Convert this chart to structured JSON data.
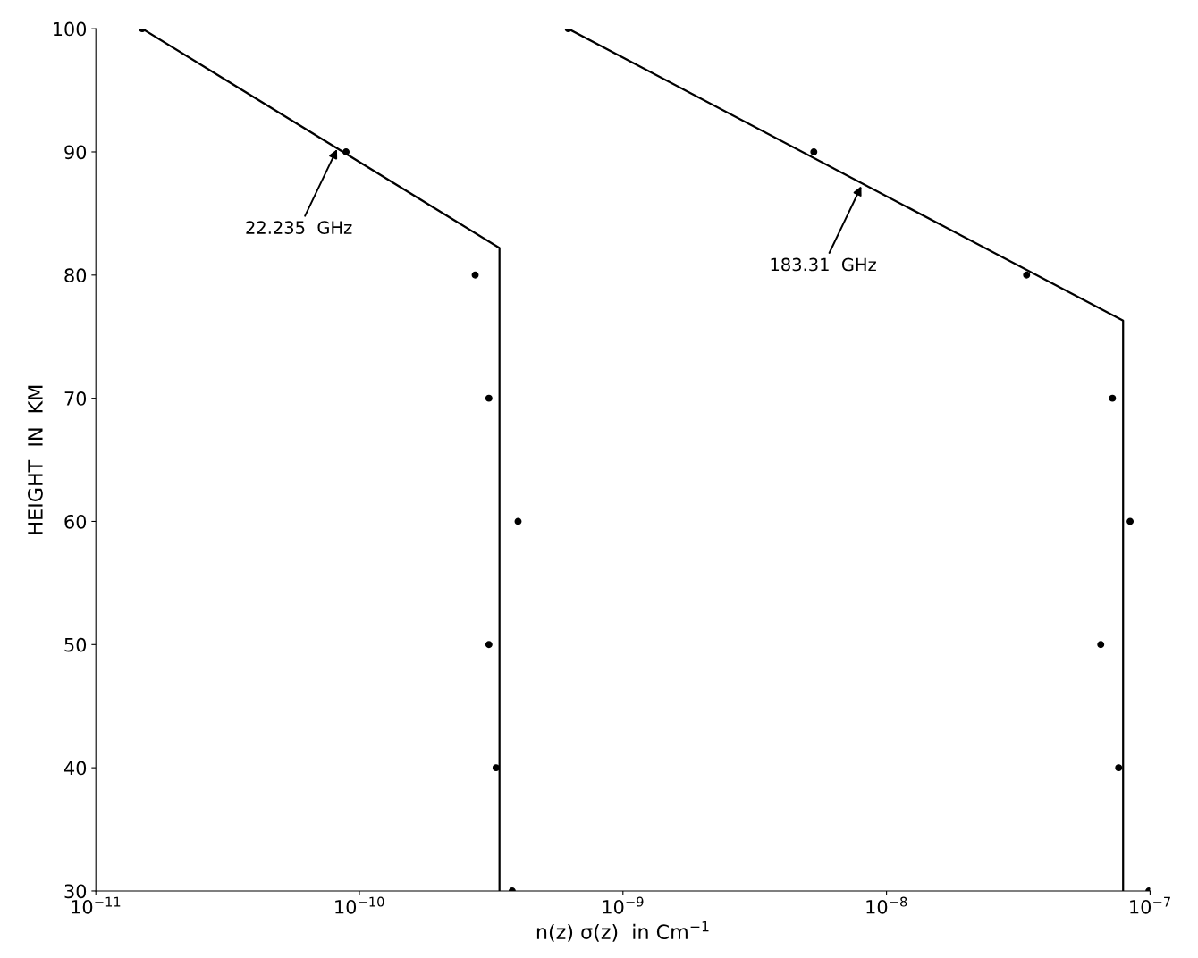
{
  "chart_data": {
    "type": "scatter",
    "xlabel": "n(z) σ(z)  in Cm$^{−1}$",
    "ylabel": "HEIGHT  IN  KM",
    "log": "x",
    "grid": false,
    "xlim": [
      1e-11,
      1e-07
    ],
    "ylim": [
      30,
      100
    ],
    "xticks": [
      {
        "value": 1e-11,
        "label": "10$^{−11}$"
      },
      {
        "value": 1e-10,
        "label": "10$^{−10}$"
      },
      {
        "value": 1e-09,
        "label": "10$^{−9}$"
      },
      {
        "value": 1e-08,
        "label": "10$^{−8}$"
      },
      {
        "value": 1e-07,
        "label": "10$^{−7}$"
      }
    ],
    "yticks": [
      30,
      40,
      50,
      60,
      70,
      80,
      90,
      100
    ],
    "series": [
      {
        "color": "#000000",
        "marker": "circle",
        "x": [
          1.5e-11,
          8.9e-11,
          2.75e-10,
          3.1e-10,
          4e-10,
          3.1e-10,
          3.3e-10,
          3.8e-10
        ],
        "values": [
          100,
          90,
          80,
          70,
          60,
          50,
          40,
          30
        ]
      },
      {
        "type": "line",
        "color": "#000000",
        "marker": "none",
        "line_style": "solid",
        "x": [
          1.5e-11,
          3.4e-10,
          3.4e-10
        ],
        "values": [
          100,
          82.2,
          30
        ]
      },
      {
        "color": "#000000",
        "marker": "circle",
        "x": [
          6.2e-10,
          5.3e-09,
          3.4e-08,
          7.2e-08,
          8.4e-08,
          6.5e-08,
          7.6e-08,
          9.9e-08
        ],
        "values": [
          100,
          90,
          80,
          70,
          60,
          50,
          40,
          30
        ]
      },
      {
        "type": "line",
        "color": "#000000",
        "marker": "none",
        "line_style": "solid",
        "x": [
          6.2e-10,
          7.9e-08,
          7.9e-08
        ],
        "values": [
          100,
          76.3,
          30
        ]
      }
    ],
    "annotations": [
      {
        "text": "22.235  GHz",
        "x": 8.3e-11,
        "y": 90.4
      },
      {
        "text": "183.31  GHz",
        "x": 8.1e-09,
        "y": 87.4
      }
    ]
  }
}
